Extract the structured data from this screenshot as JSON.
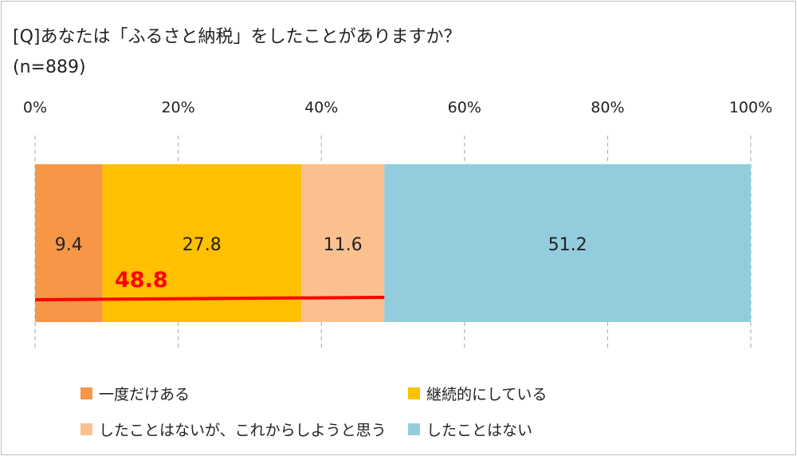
{
  "header": {
    "title": "[Q]あなたは「ふるさと納税」をしたことがありますか？",
    "subtitle": "(n=889)"
  },
  "chart_data": {
    "type": "bar",
    "orientation": "horizontal",
    "stacked": true,
    "xlim": [
      0,
      100
    ],
    "x_ticks": [
      "0%",
      "20%",
      "40%",
      "60%",
      "80%",
      "100%"
    ],
    "x_tick_values": [
      0,
      20,
      40,
      60,
      80,
      100
    ],
    "grid": "vertical dashed",
    "legend_position": "bottom",
    "series": [
      {
        "name": "一度だけある",
        "value": 9.4,
        "label": "9.4",
        "color": "#f79646"
      },
      {
        "name": "継続的にしている",
        "value": 27.8,
        "label": "27.8",
        "color": "#ffc000"
      },
      {
        "name": "したことはないが、これからしようと思う",
        "value": 11.6,
        "label": "11.6",
        "color": "#fac090"
      },
      {
        "name": "したことはない",
        "value": 51.2,
        "label": "51.2",
        "color": "#93cddd"
      }
    ],
    "annotation": {
      "text": "48.8",
      "from": 0,
      "to": 48.8,
      "color": "#ff0000"
    }
  }
}
